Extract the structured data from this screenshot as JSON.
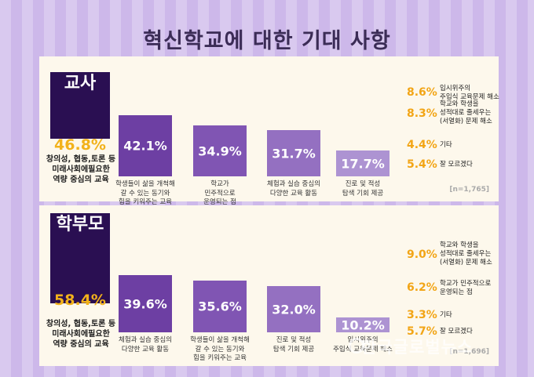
{
  "title": "혁신학교에 대한 기대 사항",
  "watermark": "한국글로벌뉴스",
  "colors": {
    "dark_purple": "#2a0f52",
    "bar_shades": [
      "#6d3fa3",
      "#8055b3",
      "#9470c1",
      "#ad93d2"
    ],
    "highlight_orange": "#f2a516"
  },
  "chart_data": [
    {
      "type": "bar",
      "title": "교사",
      "n": "[n=1,765]",
      "categories": [
        "창의성, 협동,토론 등\n미래사회에필요한\n역량 중심의 교육",
        "학생들이 삶을 개척해\n갈 수 있는 동기와\n힘을 키워주는 교육",
        "학교가\n민주적으로\n운영되는 점",
        "체험과 실습 중심의\n다양한 교육 활동",
        "진로 및 적성\n탐색 기회 제공"
      ],
      "values": [
        46.8,
        42.1,
        34.9,
        31.7,
        17.7
      ],
      "labels": [
        "46.8%",
        "42.1%",
        "34.9%",
        "31.7%",
        "17.7%"
      ],
      "others": [
        {
          "value": 8.6,
          "label": "8.6%",
          "text": "입시위주의\n주입식 교육문제 해소"
        },
        {
          "value": 8.3,
          "label": "8.3%",
          "text": "학교와 학생을\n성적대로 줄세우는\n(서열화) 문제 해소"
        },
        {
          "value": 4.4,
          "label": "4.4%",
          "text": "기타"
        },
        {
          "value": 5.4,
          "label": "5.4%",
          "text": "잘 모르겠다"
        }
      ]
    },
    {
      "type": "bar",
      "title": "학부모",
      "n": "[n=1,696]",
      "categories": [
        "창의성, 협동,토론 등\n미래사회에필요한\n역량 중심의 교육",
        "체험과 실습 중심의\n다양한 교육 활동",
        "학생들이 삶을 개척해\n갈 수 있는 동기와\n힘을 키워주는 교육",
        "진로 및 적성\n탐색 기회 제공",
        "입시위주의\n주입식 교육문제 해소"
      ],
      "values": [
        58.4,
        39.6,
        35.6,
        32.0,
        10.2
      ],
      "labels": [
        "58.4%",
        "39.6%",
        "35.6%",
        "32.0%",
        "10.2%"
      ],
      "others": [
        {
          "value": 9.0,
          "label": "9.0%",
          "text": "학교와 학생을\n성적대로 줄세우는\n(서열화) 문제 해소"
        },
        {
          "value": 6.2,
          "label": "6.2%",
          "text": "학교가 민주적으로\n운영되는 점"
        },
        {
          "value": 3.3,
          "label": "3.3%",
          "text": "기타"
        },
        {
          "value": 5.7,
          "label": "5.7%",
          "text": "잘 모르겠다"
        }
      ]
    }
  ]
}
